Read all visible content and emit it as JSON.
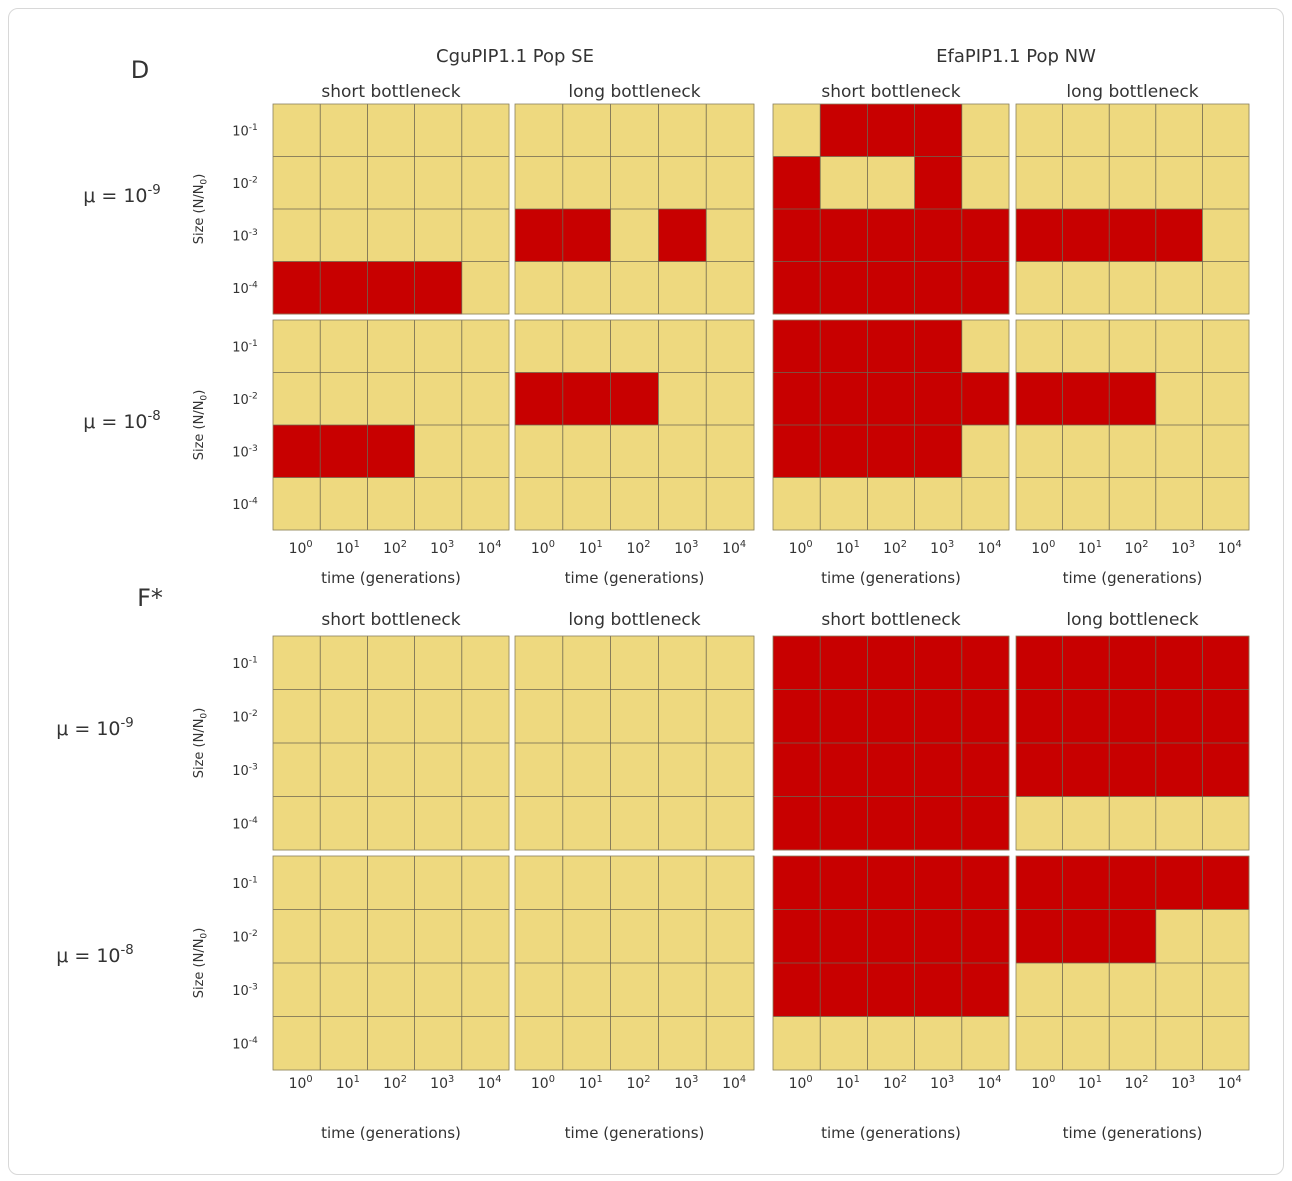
{
  "colors": {
    "suitable": "#eed97f",
    "selected": "#c80000",
    "grid": "#6e6650"
  },
  "column_titles": [
    "CguPIP1.1 Pop SE",
    "EfaPIP1.1 Pop NW"
  ],
  "cols": [
    "short bottleneck",
    "long bottleneck",
    "short bottleneck",
    "long bottleneck"
  ],
  "x_ticks": [
    "10^0",
    "10^1",
    "10^2",
    "10^3",
    "10^4"
  ],
  "y_ticks": [
    "10^-1",
    "10^-2",
    "10^-3",
    "10^-4"
  ],
  "x_label": "time (generations)",
  "y_label": "Size (N/N0)",
  "mu_labels": [
    "μ = 10^-9",
    "μ = 10^-8"
  ],
  "chart_data": [
    {
      "type": "heatmap",
      "section": "D",
      "rows_label": [
        "μ = 10^-9",
        "μ = 10^-8"
      ],
      "panels": [
        [
          {
            "title": "short bottleneck",
            "grid": [
              [
                0,
                0,
                0,
                0,
                0
              ],
              [
                0,
                0,
                0,
                0,
                0
              ],
              [
                0,
                0,
                0,
                0,
                0
              ],
              [
                1,
                1,
                1,
                1,
                0
              ]
            ]
          },
          {
            "title": "long bottleneck",
            "grid": [
              [
                0,
                0,
                0,
                0,
                0
              ],
              [
                0,
                0,
                0,
                0,
                0
              ],
              [
                1,
                1,
                0,
                1,
                0
              ],
              [
                0,
                0,
                0,
                0,
                0
              ]
            ]
          },
          {
            "title": "short bottleneck",
            "grid": [
              [
                0,
                1,
                1,
                1,
                0
              ],
              [
                1,
                0,
                0,
                1,
                0
              ],
              [
                1,
                1,
                1,
                1,
                1
              ],
              [
                1,
                1,
                1,
                1,
                1
              ]
            ]
          },
          {
            "title": "long bottleneck",
            "grid": [
              [
                0,
                0,
                0,
                0,
                0
              ],
              [
                0,
                0,
                0,
                0,
                0
              ],
              [
                1,
                1,
                1,
                1,
                0
              ],
              [
                0,
                0,
                0,
                0,
                0
              ]
            ]
          }
        ],
        [
          {
            "title": "short bottleneck",
            "grid": [
              [
                0,
                0,
                0,
                0,
                0
              ],
              [
                0,
                0,
                0,
                0,
                0
              ],
              [
                1,
                1,
                1,
                0,
                0
              ],
              [
                0,
                0,
                0,
                0,
                0
              ]
            ]
          },
          {
            "title": "long bottleneck",
            "grid": [
              [
                0,
                0,
                0,
                0,
                0
              ],
              [
                1,
                1,
                1,
                0,
                0
              ],
              [
                0,
                0,
                0,
                0,
                0
              ],
              [
                0,
                0,
                0,
                0,
                0
              ]
            ]
          },
          {
            "title": "short bottleneck",
            "grid": [
              [
                1,
                1,
                1,
                1,
                0
              ],
              [
                1,
                1,
                1,
                1,
                1
              ],
              [
                1,
                1,
                1,
                1,
                0
              ],
              [
                0,
                0,
                0,
                0,
                0
              ]
            ]
          },
          {
            "title": "long bottleneck",
            "grid": [
              [
                0,
                0,
                0,
                0,
                0
              ],
              [
                1,
                1,
                1,
                0,
                0
              ],
              [
                0,
                0,
                0,
                0,
                0
              ],
              [
                0,
                0,
                0,
                0,
                0
              ]
            ]
          }
        ]
      ]
    },
    {
      "type": "heatmap",
      "section": "F*",
      "rows_label": [
        "μ = 10^-9",
        "μ = 10^-8"
      ],
      "panels": [
        [
          {
            "title": "short bottleneck",
            "grid": [
              [
                0,
                0,
                0,
                0,
                0
              ],
              [
                0,
                0,
                0,
                0,
                0
              ],
              [
                0,
                0,
                0,
                0,
                0
              ],
              [
                0,
                0,
                0,
                0,
                0
              ]
            ]
          },
          {
            "title": "long bottleneck",
            "grid": [
              [
                0,
                0,
                0,
                0,
                0
              ],
              [
                0,
                0,
                0,
                0,
                0
              ],
              [
                0,
                0,
                0,
                0,
                0
              ],
              [
                0,
                0,
                0,
                0,
                0
              ]
            ]
          },
          {
            "title": "short bottleneck",
            "grid": [
              [
                1,
                1,
                1,
                1,
                1
              ],
              [
                1,
                1,
                1,
                1,
                1
              ],
              [
                1,
                1,
                1,
                1,
                1
              ],
              [
                1,
                1,
                1,
                1,
                1
              ]
            ]
          },
          {
            "title": "long bottleneck",
            "grid": [
              [
                1,
                1,
                1,
                1,
                1
              ],
              [
                1,
                1,
                1,
                1,
                1
              ],
              [
                1,
                1,
                1,
                1,
                1
              ],
              [
                0,
                0,
                0,
                0,
                0
              ]
            ]
          }
        ],
        [
          {
            "title": "short bottleneck",
            "grid": [
              [
                0,
                0,
                0,
                0,
                0
              ],
              [
                0,
                0,
                0,
                0,
                0
              ],
              [
                0,
                0,
                0,
                0,
                0
              ],
              [
                0,
                0,
                0,
                0,
                0
              ]
            ]
          },
          {
            "title": "long bottleneck",
            "grid": [
              [
                0,
                0,
                0,
                0,
                0
              ],
              [
                0,
                0,
                0,
                0,
                0
              ],
              [
                0,
                0,
                0,
                0,
                0
              ],
              [
                0,
                0,
                0,
                0,
                0
              ]
            ]
          },
          {
            "title": "short bottleneck",
            "grid": [
              [
                1,
                1,
                1,
                1,
                1
              ],
              [
                1,
                1,
                1,
                1,
                1
              ],
              [
                1,
                1,
                1,
                1,
                1
              ],
              [
                0,
                0,
                0,
                0,
                0
              ]
            ]
          },
          {
            "title": "long bottleneck",
            "grid": [
              [
                1,
                1,
                1,
                1,
                1
              ],
              [
                1,
                1,
                1,
                0,
                0
              ],
              [
                0,
                0,
                0,
                0,
                0
              ],
              [
                0,
                0,
                0,
                0,
                0
              ]
            ]
          }
        ]
      ]
    }
  ]
}
